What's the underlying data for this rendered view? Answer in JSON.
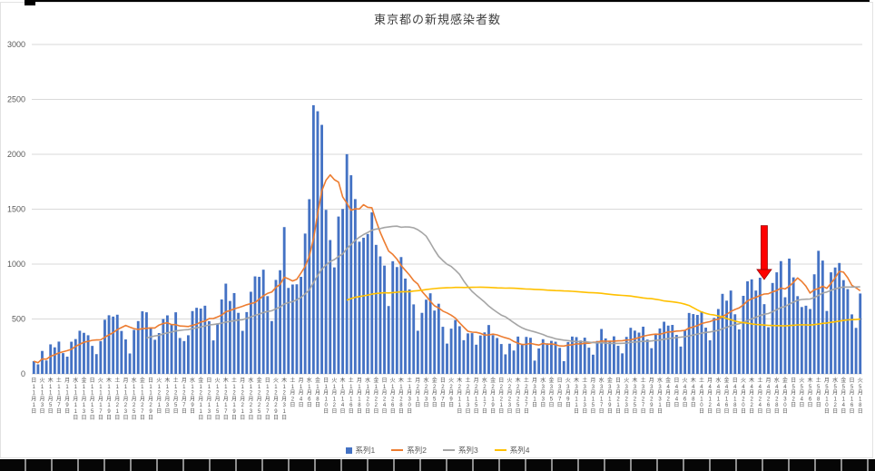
{
  "chart_data": {
    "type": "bar",
    "title": "東京都の新規感染者数",
    "ylim": [
      0,
      3000
    ],
    "yticks": [
      0,
      500,
      1000,
      1500,
      2000,
      2500,
      3000
    ],
    "grid": true,
    "legend_position": "bottom",
    "x_tick_every": 2,
    "weekday_chars": "日月火水木金土",
    "start_weekday_index": 0,
    "month_suffix": "月",
    "day_suffix": "日",
    "months": [
      {
        "month": 11,
        "days": 30
      },
      {
        "month": 12,
        "days": 31
      },
      {
        "month": 1,
        "days": 31
      },
      {
        "month": 2,
        "days": 28
      },
      {
        "month": 3,
        "days": 31
      },
      {
        "month": 4,
        "days": 30
      },
      {
        "month": 5,
        "days": 18
      }
    ],
    "series": [
      {
        "name": "系列1",
        "type": "bar",
        "color": "#4472C4",
        "values": [
          116,
          87,
          209,
          122,
          269,
          242,
          294,
          189,
          157,
          293,
          317,
          393,
          374,
          352,
          255,
          180,
          298,
          493,
          534,
          522,
          539,
          391,
          314,
          186,
          401,
          481,
          570,
          561,
          418,
          311,
          372,
          500,
          533,
          449,
          561,
          327,
          299,
          352,
          572,
          602,
          595,
          621,
          480,
          305,
          460,
          678,
          822,
          664,
          736,
          556,
          392,
          563,
          748,
          888,
          884,
          949,
          708,
          481,
          856,
          944,
          1337,
          783,
          814,
          816,
          884,
          1278,
          1591,
          2447,
          2392,
          2268,
          1494,
          1219,
          970,
          1433,
          1502,
          2001,
          1809,
          1592,
          1204,
          1240,
          1274,
          1471,
          1175,
          1070,
          986,
          618,
          1026,
          973,
          1064,
          868,
          769,
          633,
          393,
          556,
          676,
          734,
          577,
          639,
          429,
          276,
          412,
          491,
          434,
          307,
          369,
          371,
          266,
          350,
          378,
          445,
          353,
          327,
          272,
          178,
          275,
          213,
          340,
          270,
          337,
          329,
          121,
          232,
          316,
          279,
          301,
          293,
          237,
          116,
          290,
          340,
          335,
          304,
          330,
          239,
          175,
          300,
          409,
          323,
          303,
          342,
          256,
          187,
          337,
          420,
          394,
          376,
          430,
          313,
          234,
          364,
          414,
          475,
          440,
          446,
          355,
          249,
          399,
          555,
          545,
          537,
          570,
          421,
          306,
          510,
          591,
          729,
          667,
          759,
          543,
          405,
          711,
          843,
          861,
          759,
          876,
          635,
          425,
          828,
          925,
          1027,
          698,
          1050,
          879,
          708,
          609,
          621,
          591,
          907,
          1121,
          1032,
          573,
          925,
          969,
          1010,
          854,
          772,
          542,
          419,
          732
        ]
      },
      {
        "name": "系列2",
        "type": "line",
        "color": "#ED7D31",
        "derived": "moving_average",
        "window": 7,
        "start_index": 0
      },
      {
        "name": "系列3",
        "type": "line",
        "color": "#A5A5A5",
        "derived": "moving_average",
        "window": 28,
        "start_index": 27
      },
      {
        "name": "系列4",
        "type": "line",
        "color": "#FFC000",
        "derived": "moving_average",
        "window": 91,
        "start_index": 75
      }
    ],
    "annotation": {
      "shape": "down-arrow",
      "color": "#FF0000",
      "edge_color": "#990000",
      "day_index": 175,
      "from_value": 1350,
      "to_value": 860
    }
  }
}
